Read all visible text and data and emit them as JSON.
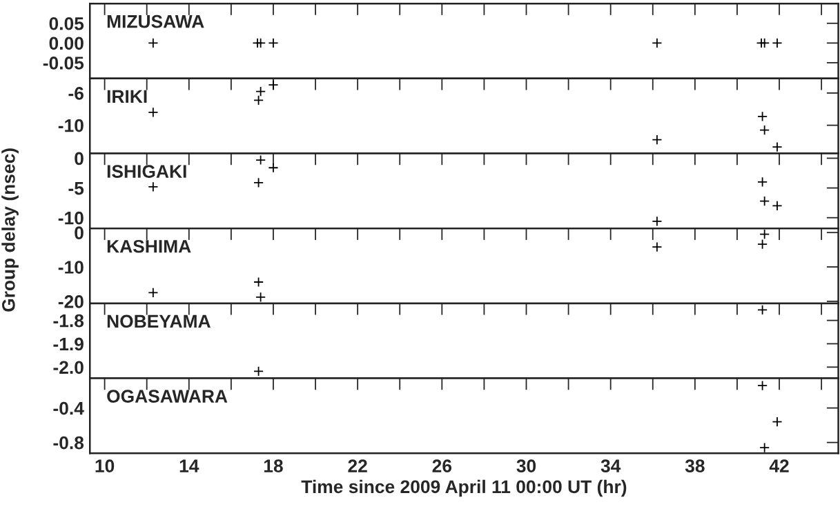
{
  "chart_data": [
    {
      "type": "scatter",
      "annotations": [
        "MIZUSAWA"
      ],
      "x": [
        12.3,
        17.25,
        17.4,
        18.0,
        36.2,
        41.15,
        41.3,
        41.9
      ],
      "values": [
        0,
        0,
        0,
        0,
        0,
        0,
        0,
        0
      ],
      "color": "#000000",
      "marker": "cross",
      "xlim": [
        9.3,
        44.8
      ],
      "xticks": [
        {
          "value": 10,
          "label": null
        },
        {
          "value": 14,
          "label": null
        },
        {
          "value": 18,
          "label": null
        },
        {
          "value": 22,
          "label": null
        },
        {
          "value": 26,
          "label": null
        },
        {
          "value": 30,
          "label": null
        },
        {
          "value": 34,
          "label": null
        },
        {
          "value": 38,
          "label": null
        },
        {
          "value": 42,
          "label": null
        }
      ],
      "ylim": [
        -0.09,
        0.1
      ],
      "yticks": [
        {
          "value": 0.05,
          "label": "0.05"
        },
        {
          "value": 0,
          "label": "0.00"
        },
        {
          "value": -0.05,
          "label": "-0.05"
        }
      ],
      "tick_labels": "y"
    },
    {
      "type": "scatter",
      "annotations": [
        "IRIKI"
      ],
      "x": [
        12.3,
        17.3,
        17.4,
        18.0,
        36.2,
        41.2,
        41.3,
        41.9
      ],
      "values": [
        -8.4,
        -6.9,
        -5.8,
        -5.0,
        -11.8,
        -8.9,
        -10.6,
        -12.7
      ],
      "color": "#000000",
      "marker": "cross",
      "xlim": [
        9.3,
        44.8
      ],
      "xticks": [
        {
          "value": 10,
          "label": null
        },
        {
          "value": 14,
          "label": null
        },
        {
          "value": 18,
          "label": null
        },
        {
          "value": 22,
          "label": null
        },
        {
          "value": 26,
          "label": null
        },
        {
          "value": 30,
          "label": null
        },
        {
          "value": 34,
          "label": null
        },
        {
          "value": 38,
          "label": null
        },
        {
          "value": 42,
          "label": null
        }
      ],
      "ylim": [
        -13.5,
        -4.2
      ],
      "yticks": [
        -6,
        -10
      ],
      "tick_labels": "y"
    },
    {
      "type": "scatter",
      "annotations": [
        "ISHIGAKI"
      ],
      "ylabel": "Group delay (nsec)",
      "x": [
        12.3,
        17.4,
        17.3,
        18.0,
        36.2,
        41.2,
        41.3,
        41.9
      ],
      "values": [
        -4.8,
        -0.3,
        -4.1,
        -1.6,
        -10.6,
        -4.0,
        -7.2,
        -8.0
      ],
      "color": "#000000",
      "marker": "cross",
      "xlim": [
        9.3,
        44.8
      ],
      "xticks": [
        {
          "value": 10,
          "label": null
        },
        {
          "value": 14,
          "label": null
        },
        {
          "value": 18,
          "label": null
        },
        {
          "value": 22,
          "label": null
        },
        {
          "value": 26,
          "label": null
        },
        {
          "value": 30,
          "label": null
        },
        {
          "value": 34,
          "label": null
        },
        {
          "value": 38,
          "label": null
        },
        {
          "value": 42,
          "label": null
        }
      ],
      "ylim": [
        -11.8,
        0.8
      ],
      "yticks": [
        0,
        -5,
        -10
      ],
      "tick_labels": "y"
    },
    {
      "type": "scatter",
      "annotations": [
        "KASHIMA"
      ],
      "x": [
        12.3,
        17.3,
        17.4,
        36.2,
        41.2,
        41.3
      ],
      "values": [
        -17.5,
        -14.4,
        -18.8,
        -4.2,
        -3.4,
        -0.5
      ],
      "color": "#000000",
      "marker": "cross",
      "xlim": [
        9.3,
        44.8
      ],
      "xticks": [
        {
          "value": 10,
          "label": null
        },
        {
          "value": 14,
          "label": null
        },
        {
          "value": 18,
          "label": null
        },
        {
          "value": 22,
          "label": null
        },
        {
          "value": 26,
          "label": null
        },
        {
          "value": 30,
          "label": null
        },
        {
          "value": 34,
          "label": null
        },
        {
          "value": 38,
          "label": null
        },
        {
          "value": 42,
          "label": null
        }
      ],
      "ylim": [
        -20.6,
        1.2
      ],
      "yticks": [
        0,
        -10,
        -20
      ],
      "tick_labels": "y"
    },
    {
      "type": "scatter",
      "annotations": [
        "NOBEYAMA"
      ],
      "x": [
        41.2,
        17.3
      ],
      "values": [
        -1.755,
        -2.018
      ],
      "color": "#000000",
      "marker": "cross",
      "xlim": [
        9.3,
        44.8
      ],
      "xticks": [
        {
          "value": 10,
          "label": null
        },
        {
          "value": 14,
          "label": null
        },
        {
          "value": 18,
          "label": null
        },
        {
          "value": 22,
          "label": null
        },
        {
          "value": 26,
          "label": null
        },
        {
          "value": 30,
          "label": null
        },
        {
          "value": 34,
          "label": null
        },
        {
          "value": 38,
          "label": null
        },
        {
          "value": 42,
          "label": null
        }
      ],
      "ylim": [
        -2.048,
        -1.727
      ],
      "yticks": [
        {
          "value": -1.8,
          "label": "-1.8"
        },
        {
          "value": -1.9,
          "label": "-1.9"
        },
        {
          "value": -2.0,
          "label": "-2.0"
        }
      ],
      "tick_labels": "y"
    },
    {
      "type": "scatter",
      "annotations": [
        "OGASAWARA"
      ],
      "xlabel": "Time since 2009 April 11 00:00 UT (hr)",
      "x": [
        41.2,
        41.9,
        41.3
      ],
      "values": [
        -0.14,
        -0.56,
        -0.86
      ],
      "color": "#000000",
      "marker": "cross",
      "xlim": [
        9.3,
        44.8
      ],
      "xticks": [
        10,
        14,
        18,
        22,
        26,
        30,
        34,
        38,
        42
      ],
      "ylim": [
        -0.925,
        -0.056
      ],
      "yticks": [
        -0.4,
        -0.8
      ]
    }
  ]
}
